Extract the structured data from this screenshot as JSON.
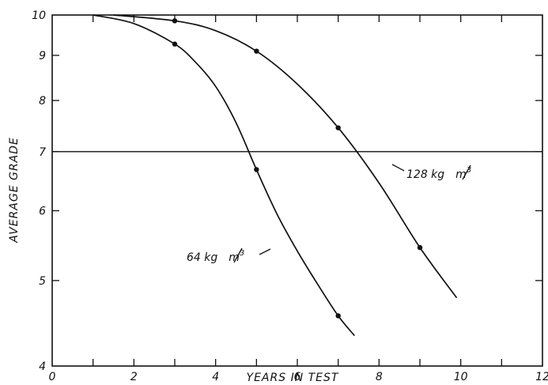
{
  "chart_data": {
    "type": "line",
    "title": "",
    "xlabel": "YEARS IN TEST",
    "ylabel": "AVERAGE GRADE",
    "xlim": [
      0,
      12
    ],
    "ylim": [
      4,
      10
    ],
    "yscale": "log",
    "grid": false,
    "x_ticks": [
      0,
      2,
      4,
      6,
      8,
      10,
      12
    ],
    "x_tick_labels": [
      "0",
      "2",
      "4",
      "6",
      "8",
      "10",
      "12"
    ],
    "y_ticks": [
      4,
      5,
      6,
      7,
      8,
      9,
      10
    ],
    "y_tick_labels": [
      "4",
      "5",
      "6",
      "7",
      "8",
      "9",
      "10"
    ],
    "reference_line": {
      "y": 7
    },
    "series": [
      {
        "name": "64 kg/m³",
        "label_parts": [
          "64 kg",
          "m",
          "3"
        ],
        "points": [
          {
            "x": 3,
            "y": 9.27
          },
          {
            "x": 5,
            "y": 6.68
          },
          {
            "x": 7,
            "y": 4.56
          }
        ],
        "curve": [
          {
            "x": 1,
            "y": 10
          },
          {
            "x": 2,
            "y": 9.78
          },
          {
            "x": 3,
            "y": 9.27
          },
          {
            "x": 3.5,
            "y": 8.85
          },
          {
            "x": 4,
            "y": 8.3
          },
          {
            "x": 4.5,
            "y": 7.55
          },
          {
            "x": 5,
            "y": 6.68
          },
          {
            "x": 5.5,
            "y": 5.95
          },
          {
            "x": 6,
            "y": 5.4
          },
          {
            "x": 6.5,
            "y": 4.95
          },
          {
            "x": 7,
            "y": 4.56
          },
          {
            "x": 7.4,
            "y": 4.33
          }
        ]
      },
      {
        "name": "128 kg/m³",
        "label_parts": [
          "128 kg",
          "m",
          "3"
        ],
        "points": [
          {
            "x": 3,
            "y": 9.85
          },
          {
            "x": 5,
            "y": 9.1
          },
          {
            "x": 7,
            "y": 7.45
          },
          {
            "x": 9,
            "y": 5.45
          }
        ],
        "curve": [
          {
            "x": 1.5,
            "y": 10
          },
          {
            "x": 3,
            "y": 9.85
          },
          {
            "x": 4,
            "y": 9.6
          },
          {
            "x": 5,
            "y": 9.1
          },
          {
            "x": 6,
            "y": 8.35
          },
          {
            "x": 7,
            "y": 7.45
          },
          {
            "x": 8,
            "y": 6.45
          },
          {
            "x": 9,
            "y": 5.45
          },
          {
            "x": 9.9,
            "y": 4.78
          }
        ]
      }
    ]
  }
}
